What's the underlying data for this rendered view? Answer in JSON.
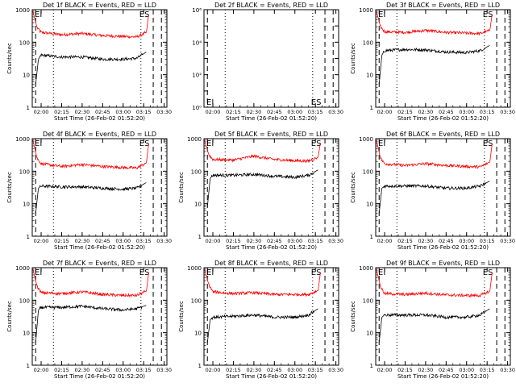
{
  "chart_data": [
    {
      "type": "line",
      "title": "Det 1f BLACK = Events, RED = LLD",
      "ylabel": "Counts/sec",
      "xlabel": "Start Time (26-Feb-02 01:52:20)",
      "yscale": "log",
      "ylim": [
        1,
        1000
      ],
      "x_ticks": [
        "02:00",
        "02:15",
        "02:30",
        "02:45",
        "03:00",
        "03:15",
        "03:30"
      ],
      "y_ticks": [
        "1",
        "10",
        "100",
        "1000"
      ],
      "markers": {
        "left": "EI",
        "right": "ES"
      },
      "series": [
        {
          "color": "#ff0000",
          "level": 160,
          "edge": "rise-both",
          "points": [
            [
              "01:54",
              900
            ],
            [
              "01:57",
              280
            ],
            [
              "02:00",
              200
            ],
            [
              "02:15",
              170
            ],
            [
              "02:30",
              185
            ],
            [
              "02:45",
              160
            ],
            [
              "03:00",
              150
            ],
            [
              "03:10",
              145
            ],
            [
              "03:17",
              200
            ],
            [
              "03:19",
              900
            ]
          ]
        },
        {
          "color": "#000000",
          "level": 35,
          "edge": "rise-both",
          "points": [
            [
              "01:56",
              5
            ],
            [
              "01:58",
              30
            ],
            [
              "02:00",
              40
            ],
            [
              "02:15",
              35
            ],
            [
              "02:30",
              35
            ],
            [
              "02:45",
              30
            ],
            [
              "03:00",
              30
            ],
            [
              "03:10",
              32
            ],
            [
              "03:17",
              50
            ]
          ]
        }
      ]
    },
    {
      "type": "line",
      "title": "Det 2f BLACK = Events, RED = LLD",
      "ylabel": "",
      "xlabel": "Start Time (26-Feb-02 01:52:20)",
      "yscale": "log",
      "ylim": [
        1,
        1000000
      ],
      "x_ticks": [
        "02:00",
        "02:15",
        "02:30",
        "02:45",
        "03:00",
        "03:15",
        "03:30"
      ],
      "y_ticks": [
        "10⁰",
        "10²",
        "10⁴",
        "10⁶"
      ],
      "markers": {
        "left": "EI",
        "right": "ES"
      },
      "series": []
    },
    {
      "type": "line",
      "title": "Det 3f BLACK = Events, RED = LLD",
      "ylabel": "Counts/sec",
      "xlabel": "Start Time (26-Feb-02 01:52:20)",
      "yscale": "log",
      "ylim": [
        1,
        1000
      ],
      "x_ticks": [
        "02:00",
        "02:15",
        "02:30",
        "02:45",
        "03:00",
        "03:15",
        "03:30"
      ],
      "y_ticks": [
        "1",
        "10",
        "100",
        "1000"
      ],
      "markers": {
        "left": "EI",
        "right": "ES"
      },
      "series": [
        {
          "color": "#ff0000",
          "points": [
            [
              "01:54",
              900
            ],
            [
              "01:57",
              300
            ],
            [
              "02:00",
              210
            ],
            [
              "02:15",
              200
            ],
            [
              "02:30",
              230
            ],
            [
              "02:45",
              200
            ],
            [
              "03:00",
              190
            ],
            [
              "03:10",
              185
            ],
            [
              "03:17",
              230
            ],
            [
              "03:19",
              900
            ]
          ]
        },
        {
          "color": "#000000",
          "points": [
            [
              "01:56",
              5
            ],
            [
              "01:58",
              40
            ],
            [
              "02:00",
              55
            ],
            [
              "02:15",
              60
            ],
            [
              "02:30",
              58
            ],
            [
              "02:45",
              50
            ],
            [
              "03:00",
              48
            ],
            [
              "03:10",
              55
            ],
            [
              "03:17",
              80
            ]
          ]
        }
      ]
    },
    {
      "type": "line",
      "title": "Det 4f BLACK = Events, RED = LLD",
      "ylabel": "Counts/sec",
      "xlabel": "Start Time (26-Feb-02 01:52:20)",
      "yscale": "log",
      "ylim": [
        1,
        1000
      ],
      "x_ticks": [
        "02:00",
        "02:15",
        "02:30",
        "02:45",
        "03:00",
        "03:15",
        "03:30"
      ],
      "y_ticks": [
        "1",
        "10",
        "100",
        "1000"
      ],
      "markers": {
        "left": "EI",
        "right": "ES"
      },
      "series": [
        {
          "color": "#ff0000",
          "points": [
            [
              "01:54",
              900
            ],
            [
              "01:57",
              250
            ],
            [
              "02:00",
              170
            ],
            [
              "02:15",
              140
            ],
            [
              "02:30",
              160
            ],
            [
              "02:45",
              140
            ],
            [
              "03:00",
              130
            ],
            [
              "03:10",
              125
            ],
            [
              "03:17",
              180
            ],
            [
              "03:19",
              900
            ]
          ]
        },
        {
          "color": "#000000",
          "points": [
            [
              "01:56",
              5
            ],
            [
              "01:58",
              30
            ],
            [
              "02:00",
              35
            ],
            [
              "02:15",
              33
            ],
            [
              "02:30",
              33
            ],
            [
              "02:45",
              30
            ],
            [
              "03:00",
              28
            ],
            [
              "03:10",
              30
            ],
            [
              "03:17",
              45
            ]
          ]
        }
      ]
    },
    {
      "type": "line",
      "title": "Det 5f BLACK = Events, RED = LLD",
      "ylabel": "Counts/sec",
      "xlabel": "Start Time (26-Feb-02 01:52:20)",
      "yscale": "log",
      "ylim": [
        1,
        1000
      ],
      "x_ticks": [
        "02:00",
        "02:15",
        "02:30",
        "02:45",
        "03:00",
        "03:15",
        "03:30"
      ],
      "y_ticks": [
        "1",
        "10",
        "100",
        "1000"
      ],
      "markers": {
        "left": "EI",
        "right": "ES"
      },
      "series": [
        {
          "color": "#ff0000",
          "points": [
            [
              "01:54",
              900
            ],
            [
              "01:57",
              320
            ],
            [
              "02:00",
              230
            ],
            [
              "02:15",
              220
            ],
            [
              "02:30",
              290
            ],
            [
              "02:45",
              230
            ],
            [
              "03:00",
              210
            ],
            [
              "03:10",
              205
            ],
            [
              "03:17",
              270
            ],
            [
              "03:19",
              900
            ]
          ]
        },
        {
          "color": "#000000",
          "points": [
            [
              "01:56",
              8
            ],
            [
              "01:58",
              60
            ],
            [
              "02:00",
              75
            ],
            [
              "02:15",
              75
            ],
            [
              "02:30",
              80
            ],
            [
              "02:45",
              70
            ],
            [
              "03:00",
              65
            ],
            [
              "03:10",
              75
            ],
            [
              "03:17",
              110
            ]
          ]
        }
      ]
    },
    {
      "type": "line",
      "title": "Det 6f BLACK = Events, RED = LLD",
      "ylabel": "Counts/sec",
      "xlabel": "Start Time (26-Feb-02 01:52:20)",
      "yscale": "log",
      "ylim": [
        1,
        1000
      ],
      "x_ticks": [
        "02:00",
        "02:15",
        "02:30",
        "02:45",
        "03:00",
        "03:15",
        "03:30"
      ],
      "y_ticks": [
        "1",
        "10",
        "100",
        "1000"
      ],
      "markers": {
        "left": "EI",
        "right": "ES"
      },
      "series": [
        {
          "color": "#ff0000",
          "points": [
            [
              "01:54",
              900
            ],
            [
              "01:57",
              250
            ],
            [
              "02:00",
              170
            ],
            [
              "02:15",
              150
            ],
            [
              "02:30",
              170
            ],
            [
              "02:45",
              150
            ],
            [
              "03:00",
              140
            ],
            [
              "03:10",
              135
            ],
            [
              "03:17",
              190
            ],
            [
              "03:19",
              900
            ]
          ]
        },
        {
          "color": "#000000",
          "points": [
            [
              "01:56",
              5
            ],
            [
              "01:58",
              30
            ],
            [
              "02:00",
              35
            ],
            [
              "02:15",
              35
            ],
            [
              "02:30",
              35
            ],
            [
              "02:45",
              30
            ],
            [
              "03:00",
              30
            ],
            [
              "03:10",
              35
            ],
            [
              "03:17",
              50
            ]
          ]
        }
      ]
    },
    {
      "type": "line",
      "title": "Det 7f BLACK = Events, RED = LLD",
      "ylabel": "Counts/sec",
      "xlabel": "Start Time (26-Feb-02 01:52:20)",
      "yscale": "log",
      "ylim": [
        1,
        1000
      ],
      "x_ticks": [
        "02:00",
        "02:15",
        "02:30",
        "02:45",
        "03:00",
        "03:15",
        "03:30"
      ],
      "y_ticks": [
        "1",
        "10",
        "100",
        "1000"
      ],
      "markers": {
        "left": "EI",
        "right": "ES"
      },
      "series": [
        {
          "color": "#ff0000",
          "points": [
            [
              "01:54",
              900
            ],
            [
              "01:57",
              270
            ],
            [
              "02:00",
              170
            ],
            [
              "02:15",
              160
            ],
            [
              "02:30",
              180
            ],
            [
              "02:45",
              150
            ],
            [
              "03:00",
              140
            ],
            [
              "03:10",
              140
            ],
            [
              "03:17",
              190
            ],
            [
              "03:19",
              900
            ]
          ]
        },
        {
          "color": "#000000",
          "points": [
            [
              "01:56",
              5
            ],
            [
              "01:58",
              50
            ],
            [
              "02:00",
              60
            ],
            [
              "02:15",
              60
            ],
            [
              "02:30",
              65
            ],
            [
              "02:45",
              55
            ],
            [
              "03:00",
              50
            ],
            [
              "03:10",
              55
            ],
            [
              "03:17",
              70
            ]
          ]
        }
      ]
    },
    {
      "type": "line",
      "title": "Det 8f BLACK = Events, RED = LLD",
      "ylabel": "Counts/sec",
      "xlabel": "Start Time (26-Feb-02 01:52:20)",
      "yscale": "log",
      "ylim": [
        1,
        1000
      ],
      "x_ticks": [
        "02:00",
        "02:15",
        "02:30",
        "02:45",
        "03:00",
        "03:15",
        "03:30"
      ],
      "y_ticks": [
        "1",
        "10",
        "100",
        "1000"
      ],
      "markers": {
        "left": "EI",
        "right": "ES"
      },
      "series": [
        {
          "color": "#ff0000",
          "points": [
            [
              "01:54",
              900
            ],
            [
              "01:57",
              300
            ],
            [
              "02:00",
              180
            ],
            [
              "02:15",
              160
            ],
            [
              "02:30",
              170
            ],
            [
              "02:45",
              150
            ],
            [
              "03:00",
              150
            ],
            [
              "03:10",
              150
            ],
            [
              "03:17",
              200
            ],
            [
              "03:19",
              900
            ]
          ]
        },
        {
          "color": "#000000",
          "points": [
            [
              "01:56",
              5
            ],
            [
              "01:58",
              25
            ],
            [
              "02:00",
              30
            ],
            [
              "02:15",
              32
            ],
            [
              "02:30",
              35
            ],
            [
              "02:45",
              30
            ],
            [
              "03:00",
              30
            ],
            [
              "03:10",
              35
            ],
            [
              "03:17",
              55
            ]
          ]
        }
      ]
    },
    {
      "type": "line",
      "title": "Det 9f BLACK = Events, RED = LLD",
      "ylabel": "Counts/sec",
      "xlabel": "Start Time (26-Feb-02 01:52:20)",
      "yscale": "log",
      "ylim": [
        1,
        1000
      ],
      "x_ticks": [
        "02:00",
        "02:15",
        "02:30",
        "02:45",
        "03:00",
        "03:15",
        "03:30"
      ],
      "y_ticks": [
        "1",
        "10",
        "100",
        "1000"
      ],
      "markers": {
        "left": "EI",
        "right": "ES"
      },
      "series": [
        {
          "color": "#ff0000",
          "points": [
            [
              "01:54",
              900
            ],
            [
              "01:57",
              260
            ],
            [
              "02:00",
              160
            ],
            [
              "02:15",
              150
            ],
            [
              "02:30",
              165
            ],
            [
              "02:45",
              145
            ],
            [
              "03:00",
              140
            ],
            [
              "03:10",
              140
            ],
            [
              "03:17",
              190
            ],
            [
              "03:19",
              900
            ]
          ]
        },
        {
          "color": "#000000",
          "points": [
            [
              "01:56",
              5
            ],
            [
              "01:58",
              30
            ],
            [
              "02:00",
              35
            ],
            [
              "02:15",
              35
            ],
            [
              "02:30",
              35
            ],
            [
              "02:45",
              30
            ],
            [
              "03:00",
              30
            ],
            [
              "03:10",
              35
            ],
            [
              "03:17",
              55
            ]
          ]
        }
      ]
    }
  ]
}
